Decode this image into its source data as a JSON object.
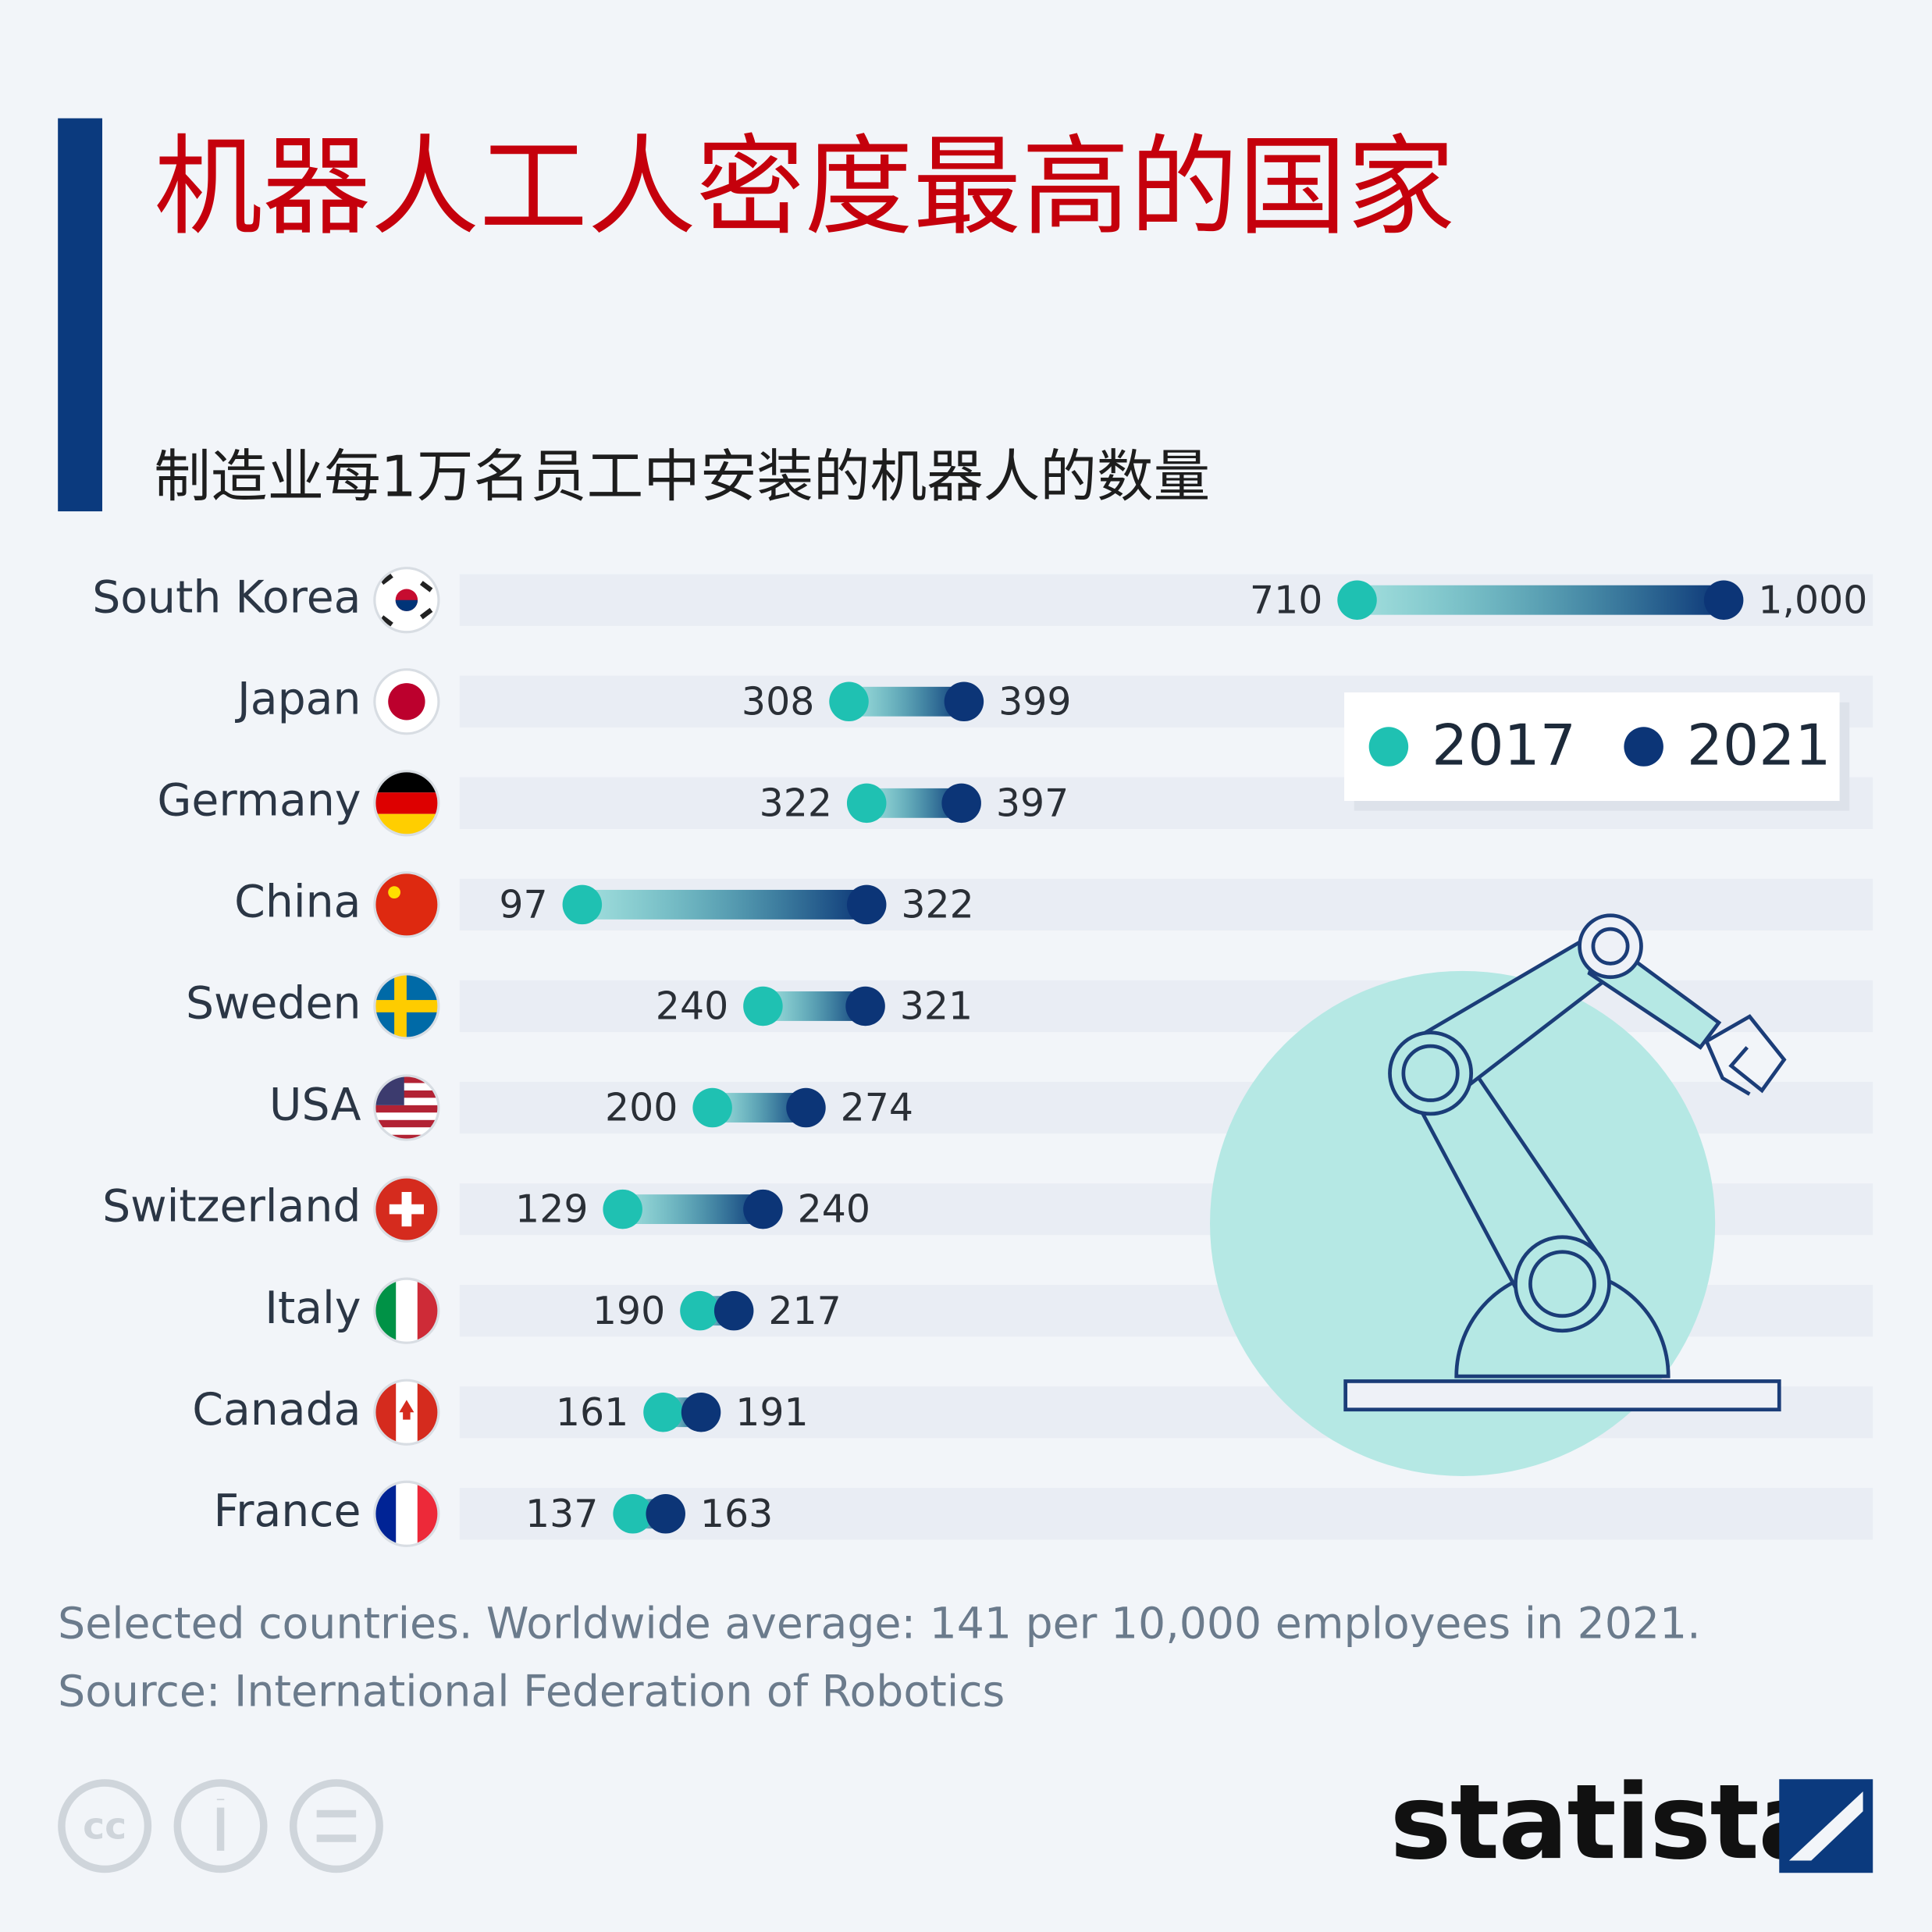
{
  "chart_data": {
    "type": "dumbbell",
    "title": "机器人工人密度最高的国家",
    "subtitle": "制造业每1万名员工中安装的机器人的数量",
    "categories": [
      "South Korea",
      "Japan",
      "Germany",
      "China",
      "Sweden",
      "USA",
      "Switzerland",
      "Italy",
      "Canada",
      "France"
    ],
    "series": [
      {
        "name": "2017",
        "color": "#1fc1b2",
        "values": [
          710,
          308,
          322,
          97,
          240,
          200,
          129,
          190,
          161,
          137
        ]
      },
      {
        "name": "2021",
        "color": "#0c3577",
        "values": [
          1000,
          399,
          397,
          322,
          321,
          274,
          240,
          217,
          191,
          163
        ],
        "value_labels": [
          "1,000",
          "399",
          "397",
          "322",
          "321",
          "274",
          "240",
          "217",
          "191",
          "163"
        ]
      }
    ],
    "xlim": [
      0,
      1118
    ],
    "legend": "top-right",
    "note": "Selected countries. Worldwide average: 141 per 10,000 employees in 2021.",
    "source": "Source: International Federation of Robotics",
    "brand": "statista"
  }
}
